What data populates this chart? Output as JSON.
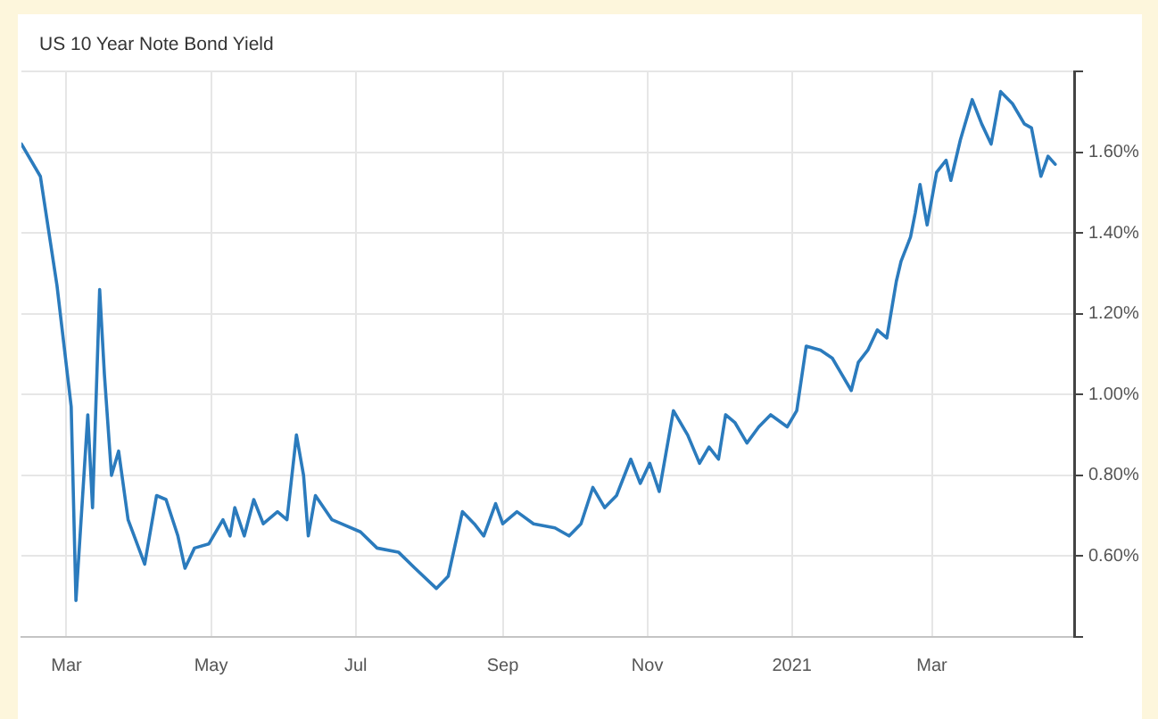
{
  "chart_data": {
    "type": "line",
    "title": "US 10 Year Note Bond Yield",
    "x": [
      "2020-02-11",
      "2020-02-19",
      "2020-02-26",
      "2020-03-03",
      "2020-03-05",
      "2020-03-10",
      "2020-03-12",
      "2020-03-15",
      "2020-03-17",
      "2020-03-20",
      "2020-03-23",
      "2020-03-27",
      "2020-04-03",
      "2020-04-08",
      "2020-04-12",
      "2020-04-17",
      "2020-04-20",
      "2020-04-24",
      "2020-04-30",
      "2020-05-06",
      "2020-05-09",
      "2020-05-11",
      "2020-05-15",
      "2020-05-19",
      "2020-05-23",
      "2020-05-29",
      "2020-06-02",
      "2020-06-06",
      "2020-06-09",
      "2020-06-11",
      "2020-06-14",
      "2020-06-21",
      "2020-06-25",
      "2020-07-03",
      "2020-07-10",
      "2020-07-19",
      "2020-07-26",
      "2020-08-04",
      "2020-08-09",
      "2020-08-15",
      "2020-08-20",
      "2020-08-24",
      "2020-08-29",
      "2020-09-01",
      "2020-09-07",
      "2020-09-14",
      "2020-09-23",
      "2020-09-29",
      "2020-10-04",
      "2020-10-09",
      "2020-10-14",
      "2020-10-19",
      "2020-10-25",
      "2020-10-29",
      "2020-11-02",
      "2020-11-06",
      "2020-11-12",
      "2020-11-18",
      "2020-11-23",
      "2020-11-27",
      "2020-12-01",
      "2020-12-04",
      "2020-12-08",
      "2020-12-13",
      "2020-12-18",
      "2020-12-23",
      "2020-12-30",
      "2021-01-03",
      "2021-01-07",
      "2021-01-13",
      "2021-01-18",
      "2021-01-22",
      "2021-01-26",
      "2021-01-29",
      "2021-02-02",
      "2021-02-06",
      "2021-02-10",
      "2021-02-14",
      "2021-02-16",
      "2021-02-20",
      "2021-02-22",
      "2021-02-24",
      "2021-02-27",
      "2021-03-03",
      "2021-03-07",
      "2021-03-09",
      "2021-03-13",
      "2021-03-18",
      "2021-03-22",
      "2021-03-26",
      "2021-03-30",
      "2021-04-04",
      "2021-04-09",
      "2021-04-12",
      "2021-04-16",
      "2021-04-19",
      "2021-04-22"
    ],
    "series": [
      {
        "color": "#2b7bbd",
        "values": [
          1.62,
          1.54,
          1.27,
          0.97,
          0.49,
          0.95,
          0.72,
          1.26,
          1.05,
          0.8,
          0.86,
          0.69,
          0.58,
          0.75,
          0.74,
          0.65,
          0.57,
          0.62,
          0.63,
          0.69,
          0.65,
          0.72,
          0.65,
          0.74,
          0.68,
          0.71,
          0.69,
          0.9,
          0.8,
          0.65,
          0.75,
          0.69,
          0.68,
          0.66,
          0.62,
          0.61,
          0.57,
          0.52,
          0.55,
          0.71,
          0.68,
          0.65,
          0.73,
          0.68,
          0.71,
          0.68,
          0.67,
          0.65,
          0.68,
          0.77,
          0.72,
          0.75,
          0.84,
          0.78,
          0.83,
          0.76,
          0.96,
          0.9,
          0.83,
          0.87,
          0.84,
          0.95,
          0.93,
          0.88,
          0.92,
          0.95,
          0.92,
          0.96,
          1.12,
          1.11,
          1.09,
          1.05,
          1.01,
          1.08,
          1.11,
          1.16,
          1.14,
          1.28,
          1.33,
          1.39,
          1.45,
          1.52,
          1.42,
          1.55,
          1.58,
          1.53,
          1.63,
          1.73,
          1.67,
          1.62,
          1.75,
          1.72,
          1.67,
          1.66,
          1.54,
          1.59,
          1.57
        ]
      }
    ],
    "xlim": [
      "2020-02-11",
      "2021-04-30"
    ],
    "xticks": [
      {
        "value": "2020-03",
        "label": "Mar"
      },
      {
        "value": "2020-05",
        "label": "May"
      },
      {
        "value": "2020-07",
        "label": "Jul"
      },
      {
        "value": "2020-09",
        "label": "Sep"
      },
      {
        "value": "2020-11",
        "label": "Nov"
      },
      {
        "value": "2021-01",
        "label": "2021"
      },
      {
        "value": "2021-03",
        "label": "Mar"
      }
    ],
    "ylim": [
      0.4,
      1.8
    ],
    "yticks": [
      {
        "value": 0.4,
        "label": null
      },
      {
        "value": 0.6,
        "label": "0.60%"
      },
      {
        "value": 0.8,
        "label": "0.80%"
      },
      {
        "value": 1.0,
        "label": "1.00%"
      },
      {
        "value": 1.2,
        "label": "1.20%"
      },
      {
        "value": 1.4,
        "label": "1.40%"
      },
      {
        "value": 1.6,
        "label": "1.60%"
      },
      {
        "value": 1.8,
        "label": null
      }
    ],
    "grid": true,
    "line_style": "solid"
  }
}
